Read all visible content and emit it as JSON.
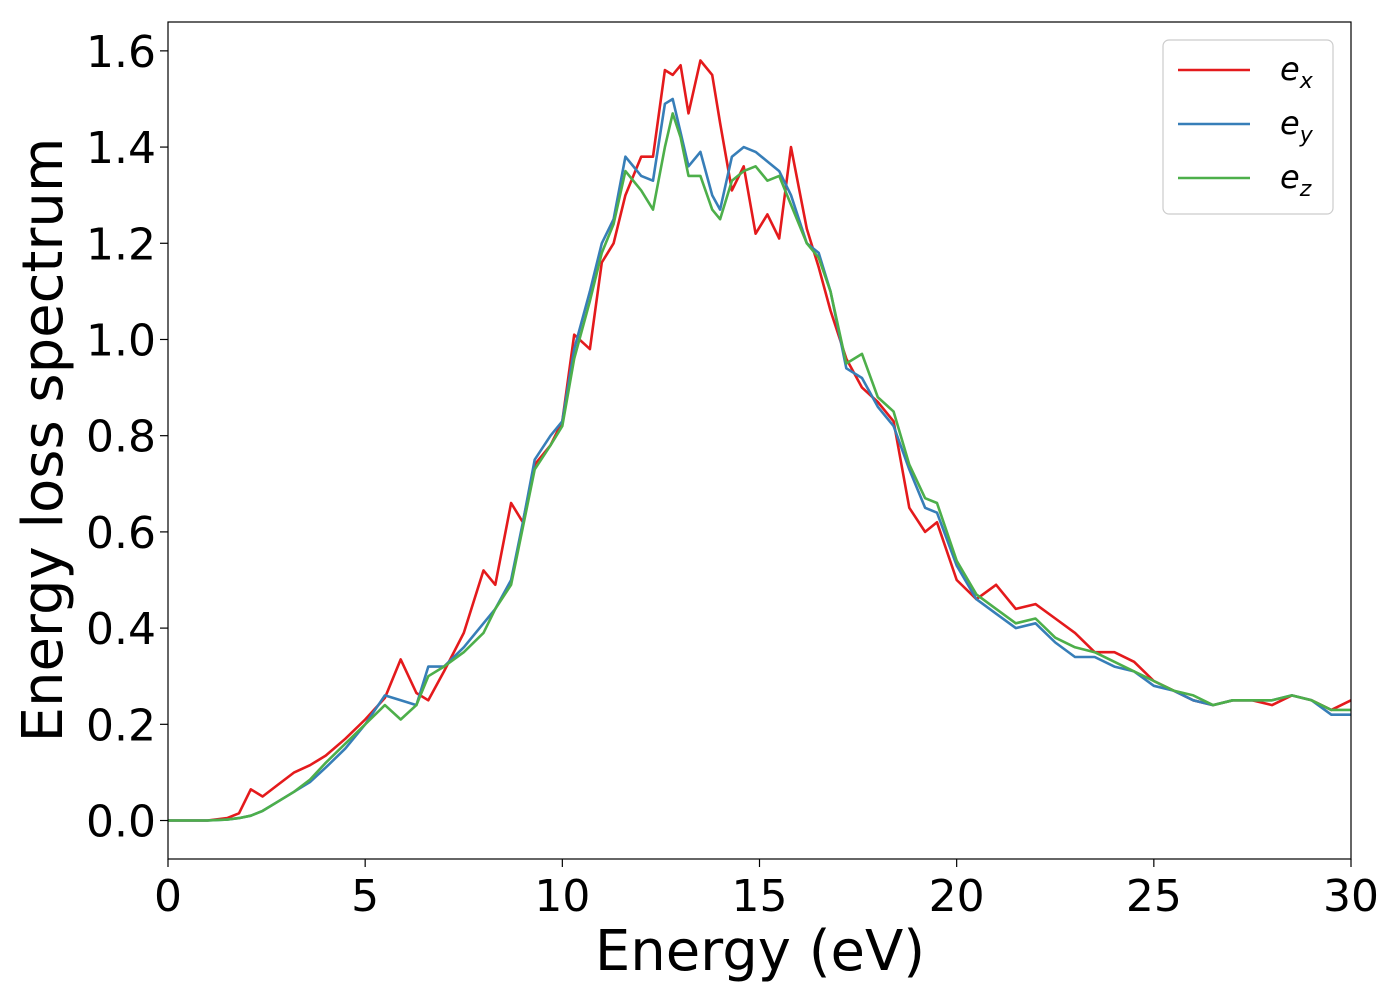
{
  "chart_data": {
    "type": "line",
    "title": "",
    "xlabel": "Energy (eV)",
    "ylabel": "Energy loss spectrum",
    "xlim": [
      0,
      30
    ],
    "ylim": [
      -0.08,
      1.66
    ],
    "xticks": [
      0,
      5,
      10,
      15,
      20,
      25,
      30
    ],
    "yticks": [
      0.0,
      0.2,
      0.4,
      0.6,
      0.8,
      1.0,
      1.2,
      1.4,
      1.6
    ],
    "xtick_labels": [
      "0",
      "5",
      "10",
      "15",
      "20",
      "25",
      "30"
    ],
    "ytick_labels": [
      "0.0",
      "0.2",
      "0.4",
      "0.6",
      "0.8",
      "1.0",
      "1.2",
      "1.4",
      "1.6"
    ],
    "grid": false,
    "legend_position": "top-right",
    "x": [
      0,
      0.5,
      1,
      1.5,
      1.8,
      2.1,
      2.4,
      2.8,
      3.2,
      3.6,
      4,
      4.5,
      5,
      5.5,
      5.9,
      6.3,
      6.6,
      7,
      7.5,
      8,
      8.3,
      8.7,
      9,
      9.3,
      9.7,
      10,
      10.3,
      10.7,
      11,
      11.3,
      11.6,
      12,
      12.3,
      12.6,
      12.8,
      13,
      13.2,
      13.5,
      13.8,
      14,
      14.3,
      14.6,
      14.9,
      15.2,
      15.5,
      15.8,
      16.2,
      16.5,
      16.8,
      17.2,
      17.6,
      18,
      18.4,
      18.8,
      19.2,
      19.5,
      20,
      20.5,
      21,
      21.5,
      22,
      22.5,
      23,
      23.5,
      24,
      24.5,
      25,
      25.5,
      26,
      26.5,
      27,
      27.5,
      28,
      28.5,
      29,
      29.5,
      30
    ],
    "series": [
      {
        "name": "e_x",
        "label_base": "e",
        "label_sub": "x",
        "color": "#e41a1c",
        "values": [
          0.0,
          0.0,
          0.0,
          0.005,
          0.015,
          0.065,
          0.05,
          0.075,
          0.1,
          0.115,
          0.135,
          0.17,
          0.21,
          0.255,
          0.335,
          0.265,
          0.25,
          0.31,
          0.39,
          0.52,
          0.49,
          0.66,
          0.62,
          0.74,
          0.78,
          0.83,
          1.01,
          0.98,
          1.16,
          1.2,
          1.3,
          1.38,
          1.38,
          1.56,
          1.55,
          1.57,
          1.47,
          1.58,
          1.55,
          1.45,
          1.31,
          1.36,
          1.22,
          1.26,
          1.21,
          1.4,
          1.23,
          1.15,
          1.06,
          0.96,
          0.9,
          0.87,
          0.83,
          0.65,
          0.6,
          0.62,
          0.5,
          0.46,
          0.49,
          0.44,
          0.45,
          0.42,
          0.39,
          0.35,
          0.35,
          0.33,
          0.29,
          0.27,
          0.25,
          0.24,
          0.25,
          0.25,
          0.24,
          0.26,
          0.25,
          0.23,
          0.25
        ]
      },
      {
        "name": "e_y",
        "label_base": "e",
        "label_sub": "y",
        "color": "#377eb8",
        "values": [
          0.0,
          0.0,
          0.0,
          0.002,
          0.005,
          0.01,
          0.02,
          0.04,
          0.06,
          0.08,
          0.11,
          0.15,
          0.2,
          0.26,
          0.25,
          0.24,
          0.32,
          0.32,
          0.36,
          0.41,
          0.44,
          0.5,
          0.62,
          0.75,
          0.8,
          0.83,
          0.98,
          1.1,
          1.2,
          1.25,
          1.38,
          1.34,
          1.33,
          1.49,
          1.5,
          1.43,
          1.36,
          1.39,
          1.3,
          1.27,
          1.38,
          1.4,
          1.39,
          1.37,
          1.35,
          1.3,
          1.2,
          1.18,
          1.1,
          0.94,
          0.92,
          0.86,
          0.82,
          0.73,
          0.65,
          0.64,
          0.53,
          0.46,
          0.43,
          0.4,
          0.41,
          0.37,
          0.34,
          0.34,
          0.32,
          0.31,
          0.28,
          0.27,
          0.25,
          0.24,
          0.25,
          0.25,
          0.25,
          0.26,
          0.25,
          0.22,
          0.22
        ]
      },
      {
        "name": "e_z",
        "label_base": "e",
        "label_sub": "z",
        "color": "#4daf4a",
        "values": [
          0.0,
          0.0,
          0.0,
          0.002,
          0.005,
          0.01,
          0.02,
          0.04,
          0.06,
          0.085,
          0.12,
          0.16,
          0.2,
          0.24,
          0.21,
          0.24,
          0.3,
          0.32,
          0.35,
          0.39,
          0.44,
          0.49,
          0.61,
          0.73,
          0.78,
          0.82,
          0.96,
          1.08,
          1.18,
          1.24,
          1.35,
          1.31,
          1.27,
          1.4,
          1.47,
          1.42,
          1.34,
          1.34,
          1.27,
          1.25,
          1.33,
          1.35,
          1.36,
          1.33,
          1.34,
          1.28,
          1.2,
          1.17,
          1.1,
          0.95,
          0.97,
          0.88,
          0.85,
          0.74,
          0.67,
          0.66,
          0.54,
          0.47,
          0.44,
          0.41,
          0.42,
          0.38,
          0.36,
          0.35,
          0.33,
          0.31,
          0.29,
          0.27,
          0.26,
          0.24,
          0.25,
          0.25,
          0.25,
          0.26,
          0.25,
          0.23,
          0.23
        ]
      }
    ]
  }
}
